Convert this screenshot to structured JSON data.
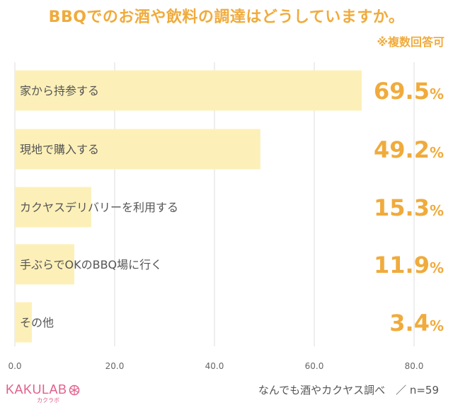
{
  "header": {
    "title": "BBQでのお酒や飲料の調達はどうしていますか。",
    "note": "※複数回答可"
  },
  "footer": {
    "logo": "KAKULAB",
    "logo_sub": "カクラボ",
    "source": "なんでも酒やカクヤス調べ　／ n=59"
  },
  "colors": {
    "bar": "#fcf0b8",
    "accent": "#f0ab3c",
    "grid": "#dddddd"
  },
  "chart_data": {
    "type": "bar",
    "orientation": "horizontal",
    "categories": [
      "家から持参する",
      "現地で購入する",
      "カクヤスデリバリーを利用する",
      "手ぶらでOKのBBQ場に行く",
      "その他"
    ],
    "values": [
      69.5,
      49.2,
      15.3,
      11.9,
      3.4
    ],
    "value_labels": [
      "69.5",
      "49.2",
      "15.3",
      "11.9",
      "3.4"
    ],
    "value_unit": "%",
    "xlim": [
      0,
      80
    ],
    "ticks": [
      "0.0",
      "20.0",
      "40.0",
      "60.0",
      "80.0"
    ],
    "tick_values": [
      0,
      20,
      40,
      60,
      80
    ],
    "grid": true
  }
}
